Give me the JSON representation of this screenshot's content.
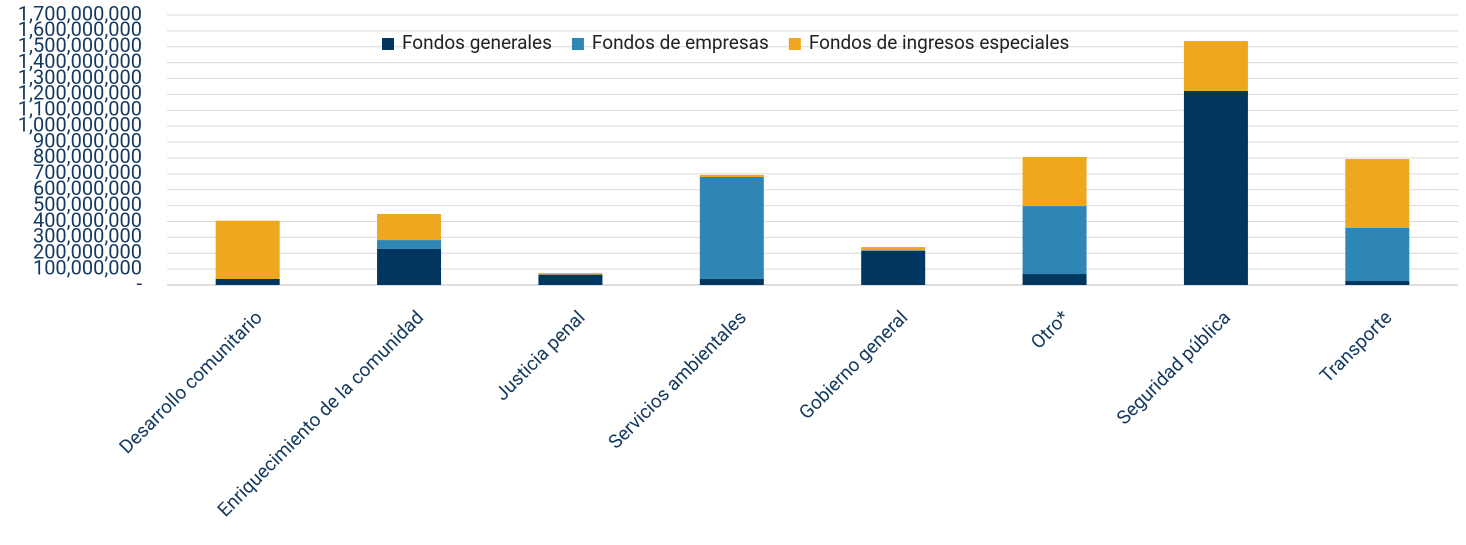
{
  "chart_data": {
    "type": "stacked_bar",
    "categories": [
      "Desarrollo comunitario",
      "Enriquecimiento de la comunidad",
      "Justicia penal",
      "Servicios ambientales",
      "Gobierno general",
      "Otro*",
      "Seguridad pública",
      "Transporte"
    ],
    "series": [
      {
        "name": "Fondos generales",
        "color": "#003660",
        "values": [
          38000000,
          227000000,
          65000000,
          38000000,
          214000000,
          69000000,
          1222000000,
          25000000
        ]
      },
      {
        "name": "Fondos de empresas",
        "color": "#2e86b5",
        "values": [
          0,
          56000000,
          2000000,
          642000000,
          5000000,
          428000000,
          0,
          334000000
        ]
      },
      {
        "name": "Fondos de ingresos especiales",
        "color": "#f0a720",
        "values": [
          367000000,
          164000000,
          8000000,
          13000000,
          20000000,
          309000000,
          314000000,
          434000000
        ]
      }
    ],
    "ylim": [
      0,
      1700000000
    ],
    "yticks": [
      {
        "value": 0,
        "label": "-"
      },
      {
        "value": 100000000,
        "label": "100,000,000"
      },
      {
        "value": 200000000,
        "label": "200,000,000"
      },
      {
        "value": 300000000,
        "label": "300,000,000"
      },
      {
        "value": 400000000,
        "label": "400,000,000"
      },
      {
        "value": 500000000,
        "label": "500,000,000"
      },
      {
        "value": 600000000,
        "label": "600,000,000"
      },
      {
        "value": 700000000,
        "label": "700,000,000"
      },
      {
        "value": 800000000,
        "label": "800,000,000"
      },
      {
        "value": 900000000,
        "label": "900,000,000"
      },
      {
        "value": 1000000000,
        "label": "1,000,000,000"
      },
      {
        "value": 1100000000,
        "label": "1,100,000,000"
      },
      {
        "value": 1200000000,
        "label": "1,200,000,000"
      },
      {
        "value": 1300000000,
        "label": "1,300,000,000"
      },
      {
        "value": 1400000000,
        "label": "1,400,000,000"
      },
      {
        "value": 1500000000,
        "label": "1,500,000,000"
      },
      {
        "value": 1600000000,
        "label": "1,600,000,000"
      },
      {
        "value": 1700000000,
        "label": "1,700,000,000"
      }
    ],
    "grid": true,
    "legend": "top"
  }
}
